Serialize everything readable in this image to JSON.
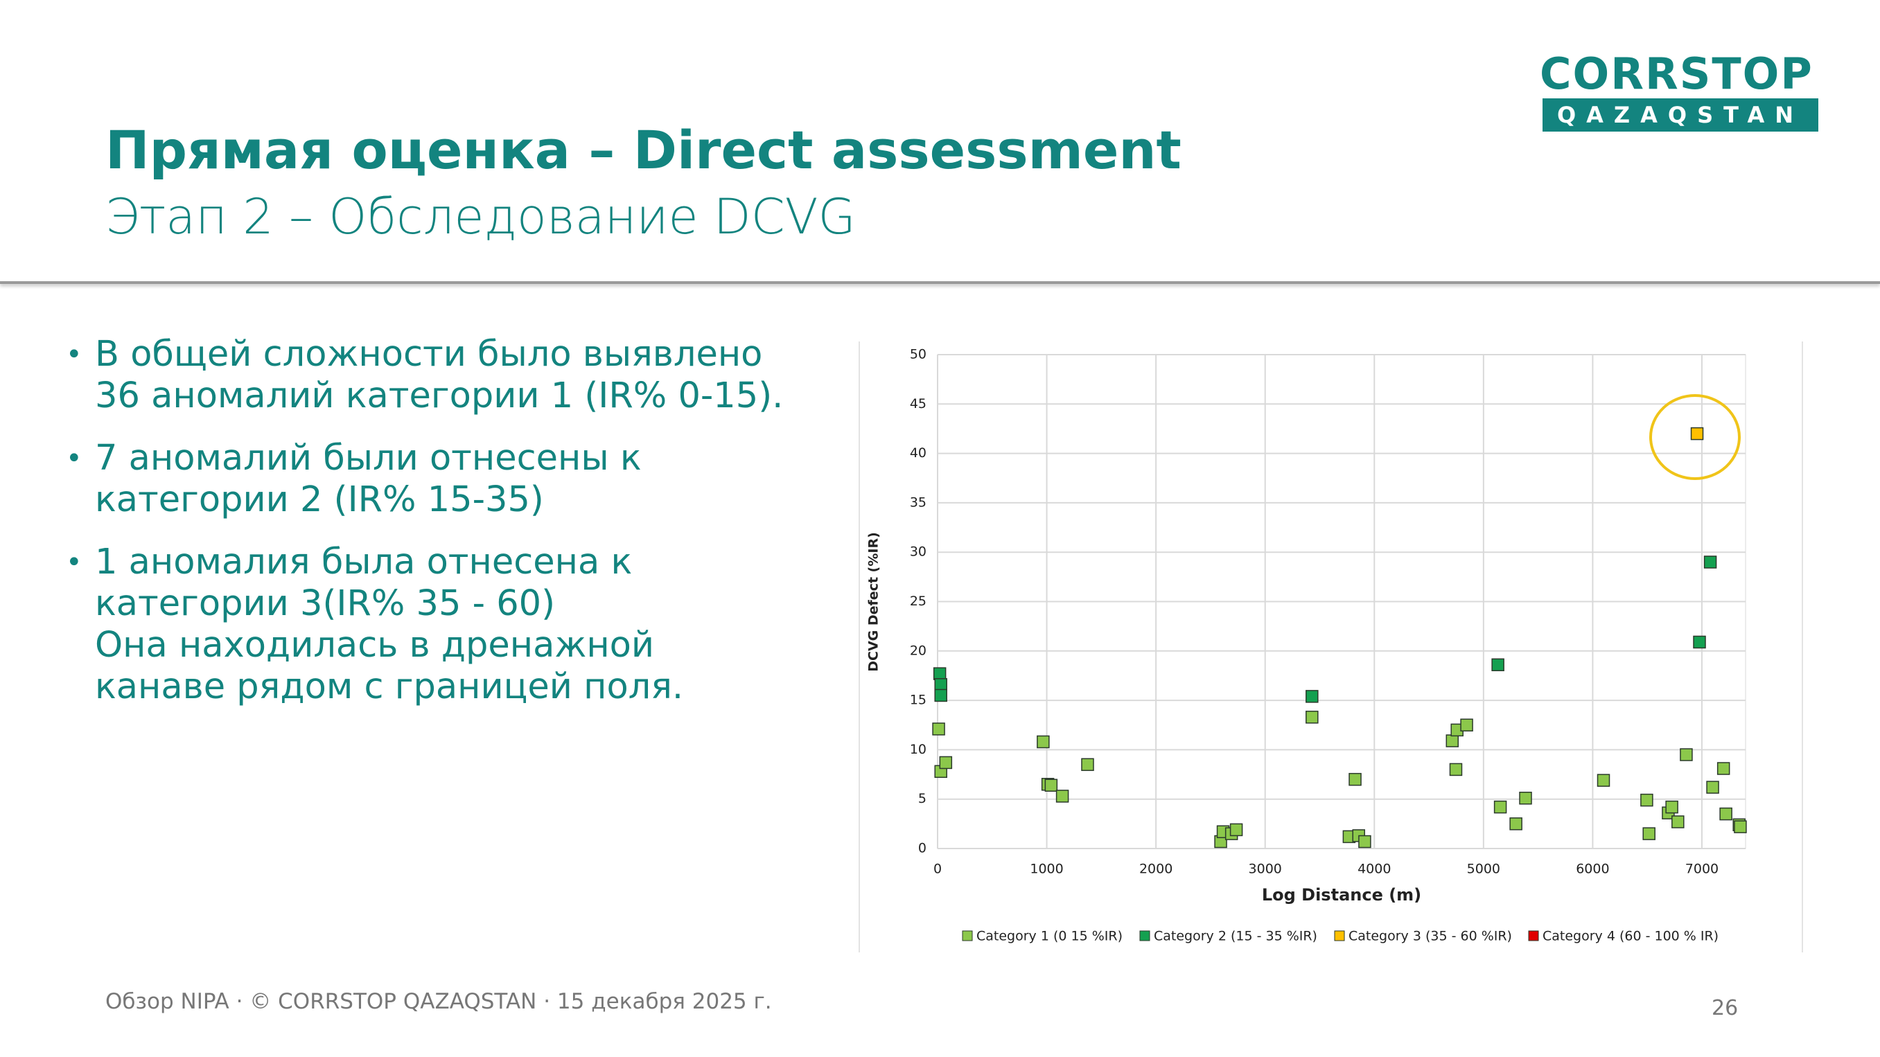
{
  "logo": {
    "name": "CORRSTOP",
    "sub": "QAZAQSTAN"
  },
  "header": {
    "title": "Прямая оценка – Direct assessment",
    "subtitle": "Этап 2 – Обследование DCVG"
  },
  "bullets": [
    [
      "В общей сложности было выявлено",
      "36 аномалий категории 1 (IR% 0-15)."
    ],
    [
      "7 аномалий были отнесены к",
      "категории 2 (IR% 15-35)"
    ],
    [
      "1 аномалия была отнесена к",
      "категории 3(IR% 35 - 60)",
      "Она находилась в дренажной",
      "канаве рядом с границей поля."
    ]
  ],
  "chart_data": {
    "type": "scatter",
    "x_label": "Log Distance (m)",
    "y_label": "DCVG Defect (%IR)",
    "xlim": [
      0,
      7400
    ],
    "ylim": [
      0,
      50
    ],
    "xticks": [
      0,
      1000,
      2000,
      3000,
      4000,
      5000,
      6000,
      7000
    ],
    "yticks": [
      0,
      5,
      10,
      15,
      20,
      25,
      30,
      35,
      40,
      45,
      50
    ],
    "grid": true,
    "series": [
      {
        "name": "Category 1 (0 15 %IR)",
        "color": "#8cc84b",
        "x": [
          10,
          30,
          75,
          967,
          1010,
          1040,
          1143,
          1374,
          2593,
          2615,
          2692,
          2736,
          3429,
          3769,
          3824,
          3857,
          3912,
          4714,
          4758,
          4846,
          4747,
          5154,
          5297,
          5385,
          6099,
          6495,
          6516,
          6692,
          6725,
          6780,
          6857,
          7099,
          7198,
          7220,
          7341,
          7352
        ],
        "values": [
          12.1,
          7.8,
          8.7,
          10.8,
          6.5,
          6.4,
          5.3,
          8.5,
          0.7,
          1.7,
          1.5,
          1.9,
          13.3,
          1.2,
          7.0,
          1.3,
          0.7,
          10.9,
          12.0,
          12.5,
          8.0,
          4.2,
          2.5,
          5.1,
          6.9,
          4.9,
          1.5,
          3.6,
          4.2,
          2.7,
          9.5,
          6.2,
          8.1,
          3.5,
          2.4,
          2.2
        ]
      },
      {
        "name": "Category 2 (15 - 35 %IR)",
        "color": "#14a050",
        "x": [
          20,
          30,
          30,
          3429,
          5132,
          7077,
          6978
        ],
        "values": [
          17.7,
          16.6,
          15.5,
          15.4,
          18.6,
          29.0,
          20.9
        ]
      },
      {
        "name": "Category 3 (35 - 60 %IR)",
        "color": "#ffc000",
        "x": [
          6956
        ],
        "values": [
          42.0
        ]
      },
      {
        "name": "Category 4 (60 - 100 % IR)",
        "color": "#e00000",
        "x": [],
        "values": []
      }
    ]
  },
  "footer": {
    "text": "Обзор NIPA · © CORRSTOP QAZAQSTAN · 15 декабря 2025 г.",
    "page": "26"
  }
}
